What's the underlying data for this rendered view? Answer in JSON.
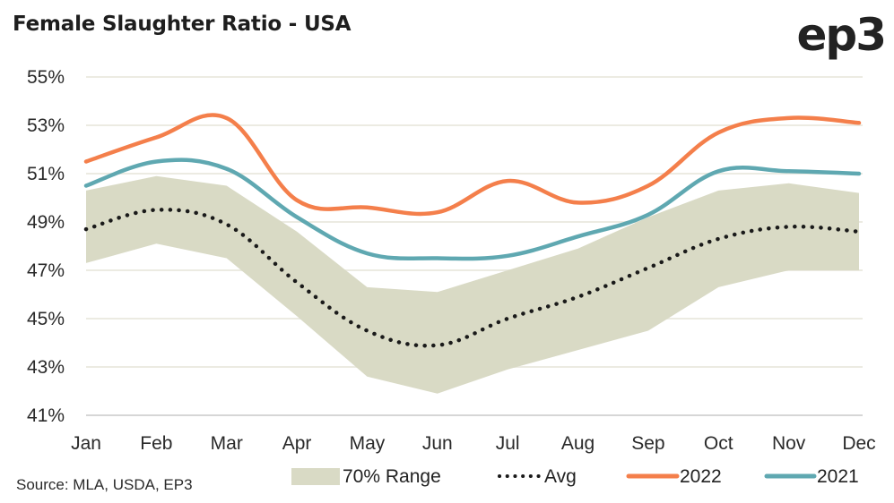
{
  "header": {
    "title": "Female Slaughter Ratio - USA",
    "logo": "ep3"
  },
  "source": "Source: MLA, USDA, EP3",
  "colors": {
    "range": "#d9dac5",
    "avg": "#1a1a1a",
    "y2022": "#f47f4b",
    "y2021": "#5fa8b1",
    "grid": "#ecebe2",
    "baseline": "#d6d6d6"
  },
  "chart_data": {
    "type": "line",
    "title": "Female Slaughter Ratio - USA",
    "xlabel": "",
    "ylabel": "",
    "categories": [
      "Jan",
      "Feb",
      "Mar",
      "Apr",
      "May",
      "Jun",
      "Jul",
      "Aug",
      "Sep",
      "Oct",
      "Nov",
      "Dec"
    ],
    "ylim": [
      41,
      55
    ],
    "yticks": [
      55,
      53,
      51,
      49,
      47,
      45,
      43,
      41
    ],
    "ytick_labels": [
      "55%",
      "53%",
      "51%",
      "49%",
      "47%",
      "45%",
      "43%",
      "41%"
    ],
    "grid": true,
    "legend_position": "bottom",
    "range_band": {
      "name": "70% Range",
      "high": [
        50.3,
        50.9,
        50.5,
        48.6,
        46.3,
        46.1,
        47.0,
        47.9,
        49.2,
        50.3,
        50.6,
        50.2
      ],
      "low": [
        47.3,
        48.1,
        47.5,
        45.1,
        42.6,
        41.9,
        42.9,
        43.7,
        44.5,
        46.3,
        47.0,
        47.0
      ]
    },
    "series": [
      {
        "name": "Avg",
        "style": "dotted",
        "values": [
          48.7,
          49.5,
          48.9,
          46.5,
          44.5,
          43.9,
          45.0,
          45.9,
          47.1,
          48.3,
          48.8,
          48.6
        ]
      },
      {
        "name": "2022",
        "style": "solid",
        "values": [
          51.5,
          52.5,
          53.3,
          49.9,
          49.6,
          49.4,
          50.7,
          49.8,
          50.5,
          52.7,
          53.3,
          53.1
        ]
      },
      {
        "name": "2021",
        "style": "solid",
        "values": [
          50.5,
          51.5,
          51.2,
          49.2,
          47.7,
          47.5,
          47.6,
          48.4,
          49.3,
          51.1,
          51.1,
          51.0
        ]
      }
    ],
    "legend": [
      "70% Range",
      "Avg",
      "2022",
      "2021"
    ]
  }
}
